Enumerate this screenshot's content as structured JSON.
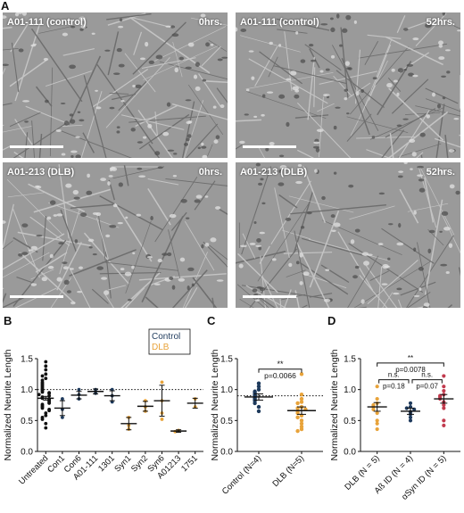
{
  "panel_labels": {
    "a": "A",
    "b": "B",
    "c": "C",
    "d": "D"
  },
  "micrographs": [
    {
      "label": "A01-111 (control)",
      "time": "0hrs."
    },
    {
      "label": "A01-111 (control)",
      "time": "52hrs."
    },
    {
      "label": "A01-213 (DLB)",
      "time": "0hrs."
    },
    {
      "label": "A01-213 (DLB)",
      "time": "52hrs."
    }
  ],
  "colors": {
    "control": "#1e3a5c",
    "dlb": "#e8a33a",
    "asyn": "#c23b4e",
    "ab": "#1e3a5c",
    "black": "#111111"
  },
  "chart_data": [
    {
      "panel": "B",
      "type": "scatter",
      "ylabel": "Normalized Neurite Length",
      "ylim": [
        0,
        1.5
      ],
      "yticks": [
        "0.0",
        "0.5",
        "1.0",
        "1.5"
      ],
      "reference_line": 1.0,
      "legend": {
        "entries": [
          "Control",
          "DLB"
        ],
        "placement": "top-right"
      },
      "categories": [
        "Untreated",
        "Con1",
        "Con6",
        "A01-111",
        "1301",
        "Syn1",
        "Syn2",
        "Syn6",
        "A01213",
        "1751"
      ],
      "groups": [
        {
          "name": "Untreated",
          "color": "black",
          "mean": 0.86,
          "err": 0.03,
          "values": [
            1.45,
            1.38,
            1.32,
            1.25,
            1.22,
            1.18,
            1.15,
            1.12,
            1.1,
            1.08,
            1.06,
            1.04,
            1.02,
            1.0,
            0.98,
            0.96,
            0.95,
            0.94,
            0.92,
            0.9,
            0.88,
            0.86,
            0.85,
            0.84,
            0.82,
            0.8,
            0.78,
            0.76,
            0.74,
            0.72,
            0.7,
            0.68,
            0.66,
            0.62,
            0.58,
            0.55,
            0.52,
            0.45,
            0.38
          ]
        },
        {
          "name": "Con1",
          "color": "control",
          "mean": 0.7,
          "err": 0.12,
          "values": [
            0.85,
            0.68,
            0.55
          ]
        },
        {
          "name": "Con6",
          "color": "control",
          "mean": 0.91,
          "err": 0.06,
          "values": [
            1.0,
            0.92,
            0.85
          ]
        },
        {
          "name": "A01-111",
          "color": "control",
          "mean": 0.97,
          "err": 0.04,
          "values": [
            1.0,
            0.94
          ]
        },
        {
          "name": "1301",
          "color": "control",
          "mean": 0.9,
          "err": 0.08,
          "values": [
            1.0,
            0.9,
            0.8
          ]
        },
        {
          "name": "Syn1",
          "color": "dlb",
          "mean": 0.45,
          "err": 0.1,
          "values": [
            0.55,
            0.42,
            0.36
          ]
        },
        {
          "name": "Syn2",
          "color": "dlb",
          "mean": 0.73,
          "err": 0.08,
          "values": [
            0.82,
            0.72,
            0.65
          ]
        },
        {
          "name": "Syn6",
          "color": "dlb",
          "mean": 0.82,
          "err": 0.25,
          "values": [
            1.12,
            0.82,
            0.62,
            0.52
          ]
        },
        {
          "name": "A01213",
          "color": "dlb",
          "mean": 0.33,
          "err": 0.02,
          "values": [
            0.34,
            0.32
          ]
        },
        {
          "name": "1751",
          "color": "dlb",
          "mean": 0.78,
          "err": 0.08,
          "values": [
            0.85,
            0.72
          ]
        }
      ]
    },
    {
      "panel": "C",
      "type": "scatter",
      "ylabel": "Normalized Neurite Length",
      "ylim": [
        0,
        1.5
      ],
      "yticks": [
        "0.0",
        "0.5",
        "1.0",
        "1.5"
      ],
      "reference_line": 0.9,
      "categories": [
        "Control (N=4)",
        "DLB (N=5)"
      ],
      "significance": {
        "stars": "**",
        "p": "p=0.0066"
      },
      "groups": [
        {
          "name": "Control (N=4)",
          "color": "control",
          "mean": 0.88,
          "err": 0.05,
          "values": [
            1.1,
            1.05,
            1.0,
            0.97,
            0.95,
            0.92,
            0.9,
            0.88,
            0.86,
            0.84,
            0.82,
            0.78,
            0.72,
            0.65
          ]
        },
        {
          "name": "DLB (N=5)",
          "color": "dlb",
          "mean": 0.66,
          "err": 0.06,
          "values": [
            1.25,
            0.92,
            0.85,
            0.8,
            0.78,
            0.72,
            0.7,
            0.68,
            0.65,
            0.62,
            0.58,
            0.55,
            0.5,
            0.45,
            0.4,
            0.36,
            0.33
          ]
        }
      ]
    },
    {
      "panel": "D",
      "type": "scatter",
      "ylabel": "Normalized Neurite Length",
      "ylim": [
        0,
        1.5
      ],
      "yticks": [
        "0.0",
        "0.5",
        "1.0",
        "1.5"
      ],
      "categories": [
        "DLB (N = 5)",
        "Aß ID (N = 4)",
        "αSyn ID (N = 5)"
      ],
      "significance": [
        {
          "from": 0,
          "to": 2,
          "stars": "**",
          "p": "p=0.0078"
        },
        {
          "from": 0,
          "to": 1,
          "stars": "n.s.",
          "p": "p=0.18"
        },
        {
          "from": 1,
          "to": 2,
          "stars": "n.s.",
          "p": "p=0.07"
        }
      ],
      "groups": [
        {
          "name": "DLB (N = 5)",
          "color": "dlb",
          "mean": 0.72,
          "err": 0.07,
          "values": [
            1.05,
            0.85,
            0.78,
            0.75,
            0.72,
            0.68,
            0.62,
            0.5,
            0.45,
            0.36
          ]
        },
        {
          "name": "Aß ID (N = 4)",
          "color": "ab",
          "mean": 0.65,
          "err": 0.05,
          "values": [
            0.78,
            0.72,
            0.7,
            0.68,
            0.64,
            0.6,
            0.55,
            0.5
          ]
        },
        {
          "name": "αSyn ID (N = 5)",
          "color": "asyn",
          "mean": 0.85,
          "err": 0.07,
          "values": [
            1.22,
            1.05,
            0.98,
            0.92,
            0.9,
            0.88,
            0.85,
            0.8,
            0.75,
            0.7,
            0.5,
            0.42
          ]
        }
      ]
    }
  ]
}
